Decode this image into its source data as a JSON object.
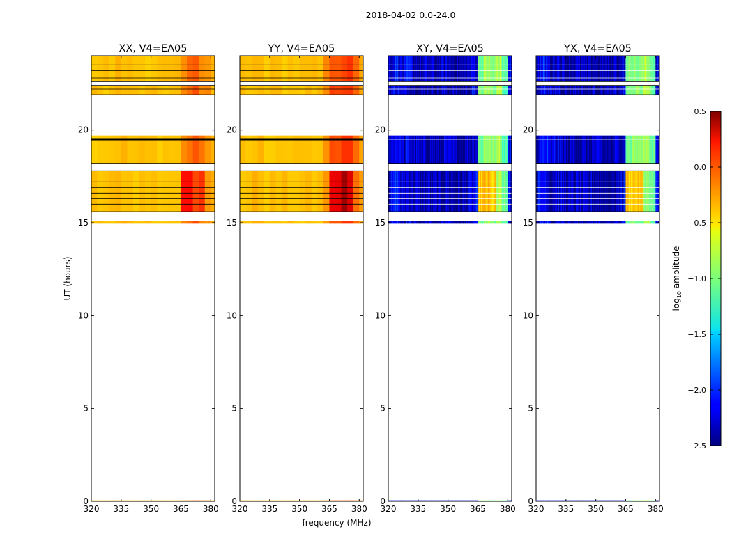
{
  "chart_data": {
    "type": "heatmap",
    "title": "2018-04-02 0.0-24.0",
    "xlabel": "frequency (MHz)",
    "ylabel": "UT (hours)",
    "xlim": [
      320,
      382
    ],
    "ylim": [
      0,
      24
    ],
    "x_ticks": [
      "320",
      "335",
      "350",
      "365",
      "380"
    ],
    "x_tick_values": [
      320,
      335,
      350,
      365,
      380
    ],
    "y_ticks": [
      "0",
      "5",
      "10",
      "15",
      "20"
    ],
    "y_tick_values": [
      0,
      5,
      10,
      15,
      20
    ],
    "colorbar": {
      "label": "log10 amplitude",
      "label_main": "log",
      "label_sub": "10",
      "label_rest": " amplitude",
      "range": [
        -2.5,
        0.5
      ],
      "ticks": [
        "0.5",
        "0.0",
        "−0.5",
        "−1.0",
        "−1.5",
        "−2.0",
        "−2.5"
      ],
      "tick_values": [
        0.5,
        0.0,
        -0.5,
        -1.0,
        -1.5,
        -2.0,
        -2.5
      ],
      "colormap": "jet"
    },
    "data_time_ranges_hours": [
      [
        0.0,
        0.05
      ],
      [
        14.95,
        15.1
      ],
      [
        15.6,
        17.8
      ],
      [
        18.2,
        19.7
      ],
      [
        21.9,
        22.4
      ],
      [
        22.6,
        24.0
      ]
    ],
    "flagged_lines_hours": [
      16.0,
      16.3,
      16.6,
      16.9,
      17.2,
      19.5,
      22.2,
      22.8,
      23.2,
      23.5
    ],
    "band_edges_mhz": [
      320,
      323,
      326,
      329,
      332,
      335,
      338,
      341,
      344,
      347,
      350,
      353,
      356,
      359,
      362,
      365,
      368,
      371,
      374,
      377,
      380,
      382
    ],
    "series": [
      {
        "name": "XX, V4=EA05",
        "band_values": [
          -0.45,
          -0.45,
          -0.45,
          -0.45,
          -0.42,
          -0.42,
          -0.45,
          -0.45,
          -0.45,
          -0.45,
          -0.45,
          -0.45,
          -0.45,
          -0.45,
          -0.45,
          -0.3,
          -0.2,
          -0.12,
          -0.25,
          -0.3,
          -0.4
        ],
        "bright_bands_late": [
          0.05,
          0.1,
          -0.05,
          0.0
        ]
      },
      {
        "name": "YY, V4=EA05",
        "band_values": [
          -0.45,
          -0.45,
          -0.42,
          -0.42,
          -0.45,
          -0.45,
          -0.45,
          -0.45,
          -0.45,
          -0.45,
          -0.45,
          -0.45,
          -0.45,
          -0.45,
          -0.3,
          -0.1,
          -0.1,
          -0.05,
          -0.05,
          -0.2,
          -0.35
        ],
        "bright_bands_late": [
          0.15,
          0.2,
          0.4,
          0.2
        ]
      },
      {
        "name": "XY, V4=EA05",
        "band_values": [
          -2.2,
          -2.1,
          -2.3,
          -2.2,
          -2.3,
          -2.4,
          -2.3,
          -2.35,
          -2.4,
          -2.3,
          -2.35,
          -2.4,
          -2.4,
          -2.3,
          -2.2,
          -1.05,
          -0.9,
          -1.0,
          -0.85,
          -1.1,
          -2.2
        ],
        "bright_bands_late": [
          -0.45,
          -0.45,
          -0.5,
          -0.9
        ]
      },
      {
        "name": "YX, V4=EA05",
        "band_values": [
          -2.2,
          -2.1,
          -2.3,
          -2.2,
          -2.3,
          -2.4,
          -2.3,
          -2.35,
          -2.4,
          -2.3,
          -2.35,
          -2.4,
          -2.4,
          -2.3,
          -2.2,
          -1.05,
          -0.95,
          -1.0,
          -0.85,
          -1.1,
          -2.2
        ],
        "bright_bands_late": [
          -0.45,
          -0.45,
          -0.5,
          -0.9
        ]
      }
    ]
  }
}
